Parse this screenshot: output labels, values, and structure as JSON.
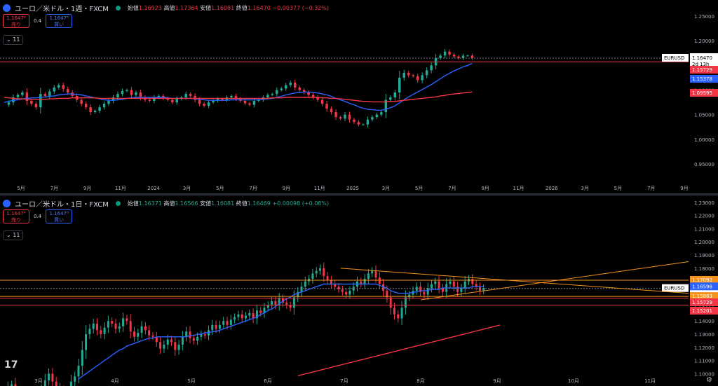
{
  "top_pane": {
    "title": "ユーロ／米ドル・1週・FXCM",
    "ohlc": {
      "o_label": "始値",
      "o": "1.16923",
      "h_label": "高値",
      "h": "1.17364",
      "l_label": "安値",
      "l": "1.16081",
      "c_label": "終値",
      "c": "1.16470",
      "chg": "−0.00377 (−0.32%)"
    },
    "sell": {
      "price": "1.1647⁴",
      "label": "売り"
    },
    "buy": {
      "price": "1.1647⁸",
      "label": "買い"
    },
    "spread": "0.4",
    "indicators": "⌄ 11",
    "symbol_tag": "EURUSD",
    "price_tag": "1.16470",
    "countdown": "2d 13h",
    "tags": [
      {
        "text": "1.15729",
        "color": "#f23645"
      },
      {
        "text": "1.15378",
        "color": "#2962ff"
      },
      {
        "text": "1.09595",
        "color": "#f23645"
      }
    ]
  },
  "bottom_pane": {
    "title": "ユーロ／米ドル・1日・FXCM",
    "ohlc": {
      "o_label": "始値",
      "o": "1.16371",
      "h_label": "高値",
      "h": "1.16566",
      "l_label": "安値",
      "l": "1.16081",
      "c_label": "終値",
      "c": "1.16469",
      "chg": "+0.00098 (+0.08%)"
    },
    "sell": {
      "price": "1.1647⁴",
      "label": "売り"
    },
    "buy": {
      "price": "1.1647⁸",
      "label": "買い"
    },
    "spread": "0.4",
    "indicators": "⌄ 11",
    "symbol_tag": "EURUSD",
    "price_tag": "1.16469",
    "countdown": "12:24:38",
    "tags": [
      {
        "text": "1.17092",
        "color": "#f7931a"
      },
      {
        "text": "1.16596",
        "color": "#2962ff"
      },
      {
        "text": "1.15863",
        "color": "#f7931a"
      },
      {
        "text": "1.15729",
        "color": "#f23645"
      },
      {
        "text": "1.15201",
        "color": "#f23645"
      }
    ],
    "logo": "17"
  },
  "chart_data": [
    {
      "type": "candlestick",
      "title": "ユーロ／米ドル・1週・FXCM",
      "ylim": [
        0.93,
        1.26
      ],
      "y_ticks": [
        "1.25000",
        "1.20000",
        "1.15000",
        "1.10000",
        "1.05000",
        "1.00000",
        "0.95000"
      ],
      "x_ticks": [
        "5月",
        "7月",
        "9月",
        "11月",
        "2024",
        "3月",
        "5月",
        "7月",
        "9月",
        "11月",
        "2025",
        "3月",
        "5月",
        "7月",
        "9月",
        "11月",
        "2026",
        "3月",
        "5月",
        "7月",
        "9月"
      ],
      "close": [
        1.07,
        1.075,
        1.085,
        1.09,
        1.095,
        1.078,
        1.072,
        1.065,
        1.092,
        1.088,
        1.097,
        1.105,
        1.11,
        1.102,
        1.095,
        1.088,
        1.08,
        1.072,
        1.065,
        1.055,
        1.058,
        1.065,
        1.072,
        1.078,
        1.085,
        1.092,
        1.098,
        1.1,
        1.09,
        1.095,
        1.085,
        1.08,
        1.078,
        1.085,
        1.088,
        1.083,
        1.08,
        1.075,
        1.082,
        1.085,
        1.092,
        1.088,
        1.08,
        1.072,
        1.068,
        1.075,
        1.078,
        1.082,
        1.08,
        1.085,
        1.088,
        1.082,
        1.078,
        1.073,
        1.07,
        1.078,
        1.08,
        1.085,
        1.09,
        1.092,
        1.1,
        1.103,
        1.11,
        1.115,
        1.105,
        1.1,
        1.095,
        1.09,
        1.085,
        1.08,
        1.072,
        1.062,
        1.055,
        1.045,
        1.042,
        1.05,
        1.04,
        1.035,
        1.03,
        1.03,
        1.04,
        1.045,
        1.05,
        1.055,
        1.08,
        1.085,
        1.095,
        1.125,
        1.135,
        1.13,
        1.128,
        1.12,
        1.13,
        1.14,
        1.15,
        1.165,
        1.17,
        1.178,
        1.172,
        1.168,
        1.165,
        1.17,
        1.17,
        1.165
      ],
      "series": [
        {
          "name": "",
          "color": "#2962ff",
          "values": [
            1.075,
            1.077,
            1.079,
            1.08,
            1.082,
            1.083,
            1.084,
            1.084,
            1.085,
            1.086,
            1.087,
            1.088,
            1.09,
            1.091,
            1.092,
            1.092,
            1.091,
            1.09,
            1.088,
            1.086,
            1.084,
            1.082,
            1.08,
            1.079,
            1.079,
            1.08,
            1.081,
            1.083,
            1.084,
            1.085,
            1.085,
            1.085,
            1.085,
            1.085,
            1.085,
            1.085,
            1.084,
            1.083,
            1.083,
            1.083,
            1.083,
            1.083,
            1.082,
            1.081,
            1.08,
            1.079,
            1.079,
            1.079,
            1.079,
            1.079,
            1.08,
            1.08,
            1.08,
            1.08,
            1.08,
            1.08,
            1.08,
            1.081,
            1.082,
            1.083,
            1.085,
            1.087,
            1.09,
            1.092,
            1.094,
            1.095,
            1.096,
            1.096,
            1.095,
            1.094,
            1.092,
            1.09,
            1.087,
            1.083,
            1.08,
            1.077,
            1.073,
            1.07,
            1.066,
            1.063,
            1.061,
            1.06,
            1.059,
            1.059,
            1.061,
            1.064,
            1.068,
            1.074,
            1.08,
            1.086,
            1.091,
            1.096,
            1.101,
            1.106,
            1.111,
            1.117,
            1.123,
            1.129,
            1.134,
            1.139,
            1.143,
            1.147,
            1.15,
            1.154
          ]
        },
        {
          "name": "",
          "color": "#f23645",
          "values": [
            1.085,
            1.084,
            1.083,
            1.082,
            1.082,
            1.081,
            1.081,
            1.081,
            1.081,
            1.081,
            1.082,
            1.082,
            1.083,
            1.083,
            1.083,
            1.084,
            1.084,
            1.084,
            1.084,
            1.084,
            1.084,
            1.083,
            1.083,
            1.083,
            1.083,
            1.083,
            1.083,
            1.083,
            1.083,
            1.083,
            1.083,
            1.083,
            1.083,
            1.083,
            1.083,
            1.083,
            1.083,
            1.083,
            1.083,
            1.083,
            1.083,
            1.083,
            1.083,
            1.083,
            1.083,
            1.083,
            1.083,
            1.083,
            1.083,
            1.083,
            1.083,
            1.083,
            1.083,
            1.083,
            1.083,
            1.083,
            1.083,
            1.083,
            1.083,
            1.084,
            1.084,
            1.084,
            1.085,
            1.085,
            1.085,
            1.085,
            1.085,
            1.085,
            1.085,
            1.085,
            1.084,
            1.084,
            1.083,
            1.083,
            1.082,
            1.081,
            1.08,
            1.079,
            1.078,
            1.077,
            1.077,
            1.076,
            1.076,
            1.076,
            1.076,
            1.077,
            1.077,
            1.078,
            1.079,
            1.08,
            1.081,
            1.082,
            1.083,
            1.084,
            1.085,
            1.086,
            1.088,
            1.089,
            1.091,
            1.092,
            1.093,
            1.094,
            1.095,
            1.096
          ]
        }
      ],
      "hlines": [
        1.1647,
        1.15729
      ]
    },
    {
      "type": "candlestick",
      "title": "ユーロ／米ドル・1日・FXCM",
      "ylim": [
        1.096,
        1.232
      ],
      "y_ticks": [
        "1.23000",
        "1.22000",
        "1.21000",
        "1.20000",
        "1.19000",
        "1.18000",
        "1.17000",
        "1.16000",
        "1.15000",
        "1.14000",
        "1.13000",
        "1.12000",
        "1.11000",
        "1.10000"
      ],
      "x_ticks": [
        "3月",
        "4月",
        "5月",
        "6月",
        "7月",
        "8月",
        "9月",
        "10月",
        "11月"
      ],
      "close": [
        1.085,
        1.09,
        1.092,
        1.085,
        1.083,
        1.08,
        1.078,
        1.082,
        1.085,
        1.083,
        1.088,
        1.095,
        1.1,
        1.094,
        1.09,
        1.087,
        1.082,
        1.086,
        1.094,
        1.098,
        1.106,
        1.118,
        1.13,
        1.134,
        1.138,
        1.133,
        1.13,
        1.135,
        1.14,
        1.138,
        1.134,
        1.136,
        1.142,
        1.14,
        1.132,
        1.128,
        1.131,
        1.136,
        1.133,
        1.129,
        1.128,
        1.124,
        1.119,
        1.122,
        1.126,
        1.124,
        1.118,
        1.122,
        1.128,
        1.132,
        1.127,
        1.125,
        1.128,
        1.13,
        1.129,
        1.133,
        1.137,
        1.134,
        1.137,
        1.14,
        1.137,
        1.141,
        1.143,
        1.145,
        1.142,
        1.144,
        1.146,
        1.142,
        1.148,
        1.146,
        1.15,
        1.152,
        1.155,
        1.152,
        1.157,
        1.154,
        1.152,
        1.15,
        1.158,
        1.162,
        1.166,
        1.17,
        1.172,
        1.176,
        1.178,
        1.18,
        1.174,
        1.171,
        1.168,
        1.166,
        1.164,
        1.162,
        1.16,
        1.163,
        1.166,
        1.17,
        1.168,
        1.172,
        1.176,
        1.178,
        1.173,
        1.168,
        1.163,
        1.158,
        1.15,
        1.145,
        1.142,
        1.15,
        1.158,
        1.16,
        1.163,
        1.166,
        1.162,
        1.16,
        1.165,
        1.168,
        1.17,
        1.165,
        1.162,
        1.168,
        1.17,
        1.166,
        1.162,
        1.165,
        1.17,
        1.172,
        1.168,
        1.166,
        1.163,
        1.165
      ],
      "series": [
        {
          "name": "",
          "color": "#2962ff",
          "values": [
            null,
            null,
            null,
            null,
            null,
            null,
            null,
            null,
            null,
            null,
            null,
            null,
            null,
            null,
            null,
            null,
            null,
            null,
            null,
            null,
            1.096,
            1.098,
            1.1,
            1.102,
            1.104,
            1.106,
            1.108,
            1.11,
            1.112,
            1.114,
            1.116,
            1.118,
            1.119,
            1.121,
            1.122,
            1.123,
            1.124,
            1.125,
            1.126,
            1.127,
            1.127,
            1.128,
            1.128,
            1.128,
            1.128,
            1.128,
            1.128,
            1.128,
            1.128,
            1.128,
            1.129,
            1.129,
            1.13,
            1.13,
            1.131,
            1.131,
            1.132,
            1.132,
            1.133,
            1.134,
            1.135,
            1.136,
            1.137,
            1.138,
            1.139,
            1.14,
            1.141,
            1.142,
            1.143,
            1.145,
            1.146,
            1.148,
            1.149,
            1.151,
            1.153,
            1.155,
            1.157,
            1.158,
            1.16,
            1.161,
            1.162,
            1.163,
            1.164,
            1.165,
            1.166,
            1.167,
            1.168,
            1.168,
            1.168,
            1.168,
            1.168,
            1.168,
            1.168,
            1.168,
            1.168,
            1.168,
            1.168,
            1.168,
            1.168,
            1.168,
            1.168,
            1.167,
            1.166,
            1.165,
            1.163,
            1.162,
            1.161,
            1.161,
            1.161,
            1.161,
            1.162,
            1.162,
            1.163,
            1.163,
            1.163,
            1.164,
            1.164,
            1.164,
            1.165,
            1.165,
            1.165,
            1.165,
            1.165,
            1.165,
            1.165,
            1.165,
            1.166,
            1.166,
            1.166,
            1.166
          ]
        },
        {
          "name": "",
          "color": "#f23645",
          "values": [
            null,
            null,
            null,
            null,
            null,
            null,
            null,
            null,
            null,
            null,
            null,
            null,
            null,
            null,
            null,
            null,
            null,
            null,
            null,
            null,
            null,
            null,
            null,
            null,
            null,
            null,
            null,
            null,
            null,
            null,
            null,
            null,
            null,
            null,
            null,
            null,
            null,
            null,
            null,
            null,
            null,
            null,
            null,
            null,
            null,
            null,
            null,
            null,
            null,
            null,
            null,
            null,
            null,
            null,
            null,
            null,
            null,
            null,
            null,
            null,
            null,
            null,
            null,
            null,
            null,
            null,
            null,
            null,
            null,
            null,
            null,
            null,
            null,
            null,
            null,
            null,
            null,
            null,
            null,
            null,
            null,
            null,
            null,
            null,
            null,
            null,
            null,
            null,
            null,
            null,
            null,
            null,
            null,
            null,
            null,
            null,
            null,
            null,
            null,
            null,
            null,
            null,
            null,
            null,
            null,
            null,
            null,
            null,
            null,
            null,
            null,
            null,
            null,
            null,
            null,
            null,
            null,
            null,
            null,
            null,
            null,
            null,
            null,
            null,
            null,
            null,
            null,
            null,
            null,
            null,
            null,
            null,
            null,
            null
          ]
        }
      ],
      "hlines": [
        1.17092,
        1.16469,
        1.15863,
        1.15729,
        1.15201
      ]
    }
  ]
}
